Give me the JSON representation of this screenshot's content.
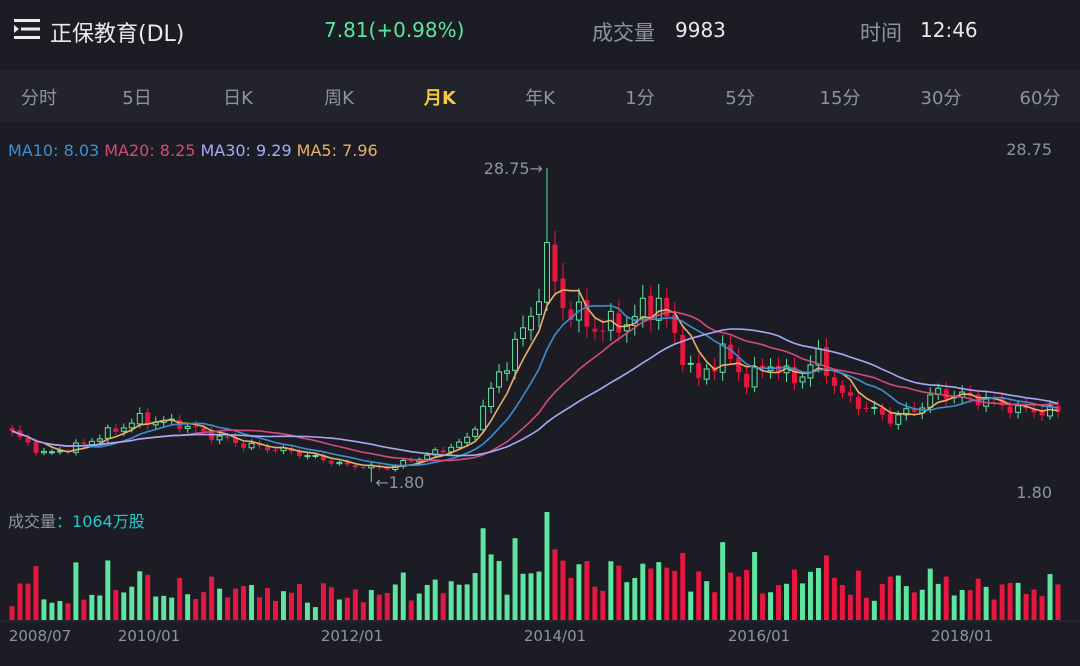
{
  "header": {
    "stock_name": "正保教育(DL)",
    "price": "7.81(+0.98%)",
    "volume_label": "成交量",
    "volume_value": "9983",
    "time_label": "时间",
    "time_value": "12:46"
  },
  "tabs": [
    {
      "label": "分时",
      "active": false
    },
    {
      "label": "5日",
      "active": false
    },
    {
      "label": "日K",
      "active": false
    },
    {
      "label": "周K",
      "active": false
    },
    {
      "label": "月K",
      "active": true
    },
    {
      "label": "年K",
      "active": false
    },
    {
      "label": "1分",
      "active": false
    },
    {
      "label": "5分",
      "active": false
    },
    {
      "label": "15分",
      "active": false
    },
    {
      "label": "30分",
      "active": false
    },
    {
      "label": "60分",
      "active": false
    }
  ],
  "ma": [
    {
      "text": "MA10: 8.03",
      "color": "#3d8fd1"
    },
    {
      "text": "MA20: 8.25",
      "color": "#d24a7c"
    },
    {
      "text": "MA30: 9.29",
      "color": "#a9a8f5"
    },
    {
      "text": "MA5: 7.96",
      "color": "#e9b26a"
    }
  ],
  "axis": {
    "price_max_label": "28.75",
    "price_min_label": "1.80",
    "high_marker": "28.75→",
    "low_marker": "←1.80",
    "x_labels": [
      "2008/07",
      "2010/01",
      "2012/01",
      "2014/01",
      "2016/01",
      "2018/01"
    ]
  },
  "volume_panel": {
    "label": "成交量",
    "value": "：1064万股"
  },
  "colors": {
    "up": "#5ee6a0",
    "down": "#e8173f",
    "ma5": "#e9b26a",
    "ma10": "#3d8fd1",
    "ma20": "#d24a7c",
    "ma30": "#a9a8f5"
  },
  "chart_data": {
    "type": "candlestick",
    "period": "monthly",
    "x_range": [
      "2008/07",
      "2019/06"
    ],
    "ylim": [
      1.8,
      28.75
    ],
    "high": {
      "value": 28.75,
      "date": "2014/02"
    },
    "low": {
      "value": 1.8,
      "date": "2012/04"
    },
    "latest_close": 7.81,
    "ma": {
      "MA5": 7.96,
      "MA10": 8.03,
      "MA20": 8.25,
      "MA30": 9.29
    },
    "latest_volume_wan_shares": 1064,
    "close_anchors": [
      {
        "date": "2008/07",
        "close": 6.0
      },
      {
        "date": "2008/11",
        "close": 4.2
      },
      {
        "date": "2009/03",
        "close": 4.8
      },
      {
        "date": "2009/07",
        "close": 6.0
      },
      {
        "date": "2009/11",
        "close": 7.2
      },
      {
        "date": "2010/04",
        "close": 6.8
      },
      {
        "date": "2010/08",
        "close": 5.8
      },
      {
        "date": "2010/12",
        "close": 5.0
      },
      {
        "date": "2011/06",
        "close": 4.4
      },
      {
        "date": "2012/01",
        "close": 3.2
      },
      {
        "date": "2012/06",
        "close": 3.0
      },
      {
        "date": "2012/12",
        "close": 4.3
      },
      {
        "date": "2013/04",
        "close": 5.4
      },
      {
        "date": "2013/08",
        "close": 11.0
      },
      {
        "date": "2013/12",
        "close": 16.0
      },
      {
        "date": "2014/02",
        "close": 21.0
      },
      {
        "date": "2014/04",
        "close": 17.0
      },
      {
        "date": "2014/08",
        "close": 15.0
      },
      {
        "date": "2014/12",
        "close": 15.5
      },
      {
        "date": "2015/04",
        "close": 17.5
      },
      {
        "date": "2015/06",
        "close": 14.0
      },
      {
        "date": "2015/09",
        "close": 10.5
      },
      {
        "date": "2015/12",
        "close": 13.0
      },
      {
        "date": "2016/03",
        "close": 10.5
      },
      {
        "date": "2016/06",
        "close": 12.0
      },
      {
        "date": "2016/09",
        "close": 10.5
      },
      {
        "date": "2016/12",
        "close": 12.5
      },
      {
        "date": "2017/03",
        "close": 9.2
      },
      {
        "date": "2017/09",
        "close": 7.2
      },
      {
        "date": "2017/12",
        "close": 8.0
      },
      {
        "date": "2018/03",
        "close": 9.5
      },
      {
        "date": "2018/09",
        "close": 8.8
      },
      {
        "date": "2019/01",
        "close": 8.0
      },
      {
        "date": "2019/06",
        "close": 7.81
      }
    ]
  }
}
